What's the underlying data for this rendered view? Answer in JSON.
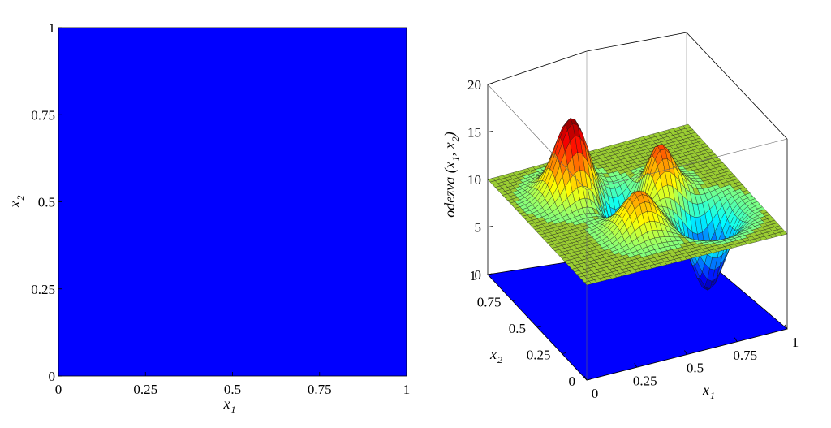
{
  "chart_data": [
    {
      "type": "heatmap",
      "xlabel": "x",
      "xlabel_sub": "1",
      "ylabel": "x",
      "ylabel_sub": "2",
      "xlim": [
        0,
        1
      ],
      "ylim": [
        0,
        1
      ],
      "xticks": [
        "0",
        "0.25",
        "0.5",
        "0.75",
        "1"
      ],
      "yticks": [
        "0",
        "0.25",
        "0.5",
        "0.75",
        "1"
      ],
      "fill_color": "#0000ff",
      "grid": false
    },
    {
      "type": "surface3d",
      "xlabel": "x",
      "xlabel_sub": "1",
      "ylabel": "x",
      "ylabel_sub": "2",
      "zlabel": "odezva (x",
      "zlabel_sub1": "1",
      "zlabel_mid": ", x",
      "zlabel_sub2": "2",
      "zlabel_end": ")",
      "xlim": [
        0,
        1
      ],
      "ylim": [
        0,
        1
      ],
      "zlim": [
        0,
        20
      ],
      "xticks": [
        "0",
        "0.25",
        "0.5",
        "0.75",
        "1"
      ],
      "yticks": [
        "0",
        "0.25",
        "0.5",
        "0.75",
        "1"
      ],
      "zticks": [
        "0",
        "5",
        "10",
        "15",
        "20"
      ],
      "base_level": 10,
      "peaks": [
        {
          "x1": 0.28,
          "x2": 0.72,
          "amplitude": 8
        },
        {
          "x1": 0.62,
          "x2": 0.55,
          "amplitude": 6
        },
        {
          "x1": 0.42,
          "x2": 0.32,
          "amplitude": 4
        },
        {
          "x1": 0.48,
          "x2": 0.58,
          "amplitude": -6
        },
        {
          "x1": 0.75,
          "x2": 0.3,
          "amplitude": -8
        }
      ],
      "floor_color": "#0000ff",
      "colormap": "jet"
    }
  ]
}
